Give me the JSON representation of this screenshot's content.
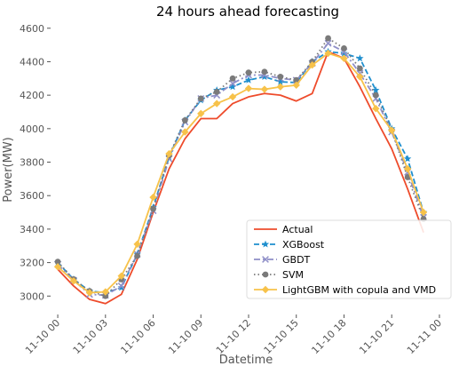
{
  "chart_data": {
    "type": "line",
    "title": "24 hours ahead forecasting",
    "xlabel": "Datetime",
    "ylabel": "Power(MW)",
    "ylim": [
      2890,
      4620
    ],
    "xlim": [
      -0.9,
      48.9
    ],
    "grid": false,
    "legend_position": "bottom-right",
    "x_ticks": [
      {
        "x": 0,
        "label": "11-10 00"
      },
      {
        "x": 6,
        "label": "11-10 03"
      },
      {
        "x": 12,
        "label": "11-10 06"
      },
      {
        "x": 18,
        "label": "11-10 09"
      },
      {
        "x": 24,
        "label": "11-10 12"
      },
      {
        "x": 30,
        "label": "11-10 15"
      },
      {
        "x": 36,
        "label": "11-10 18"
      },
      {
        "x": 42,
        "label": "11-10 21"
      },
      {
        "x": 48,
        "label": "11-11 00"
      }
    ],
    "y_ticks": [
      3000,
      3200,
      3400,
      3600,
      3800,
      4000,
      4200,
      4400,
      4600
    ],
    "x": [
      0,
      2,
      4,
      6,
      8,
      10,
      12,
      14,
      16,
      18,
      20,
      22,
      24,
      26,
      28,
      30,
      32,
      34,
      36,
      38,
      40,
      42,
      44,
      46
    ],
    "series": [
      {
        "name": "Actual",
        "color": "#ee4b2b",
        "marker": "none",
        "dash": "solid",
        "values": [
          3160,
          3060,
          2980,
          2955,
          3010,
          3220,
          3500,
          3760,
          3940,
          4060,
          4060,
          4150,
          4190,
          4210,
          4200,
          4165,
          4210,
          4460,
          4420,
          4250,
          4060,
          3880,
          3640,
          3380
        ]
      },
      {
        "name": "XGBoost",
        "color": "#1f8fce",
        "marker": "star",
        "dash": "dashed",
        "values": [
          3200,
          3100,
          3030,
          3020,
          3050,
          3250,
          3530,
          3830,
          4050,
          4170,
          4230,
          4250,
          4290,
          4310,
          4280,
          4275,
          4400,
          4460,
          4450,
          4420,
          4230,
          4000,
          3820,
          3500
        ]
      },
      {
        "name": "GBDT",
        "color": "#8f8fc8",
        "marker": "x",
        "dash": "dashdot",
        "values": [
          3190,
          3095,
          3010,
          3005,
          3060,
          3250,
          3510,
          3820,
          4040,
          4180,
          4200,
          4270,
          4320,
          4320,
          4300,
          4290,
          4390,
          4510,
          4460,
          4330,
          4180,
          3980,
          3740,
          3470
        ]
      },
      {
        "name": "SVM",
        "color": "#7a7a7a",
        "marker": "circle",
        "dash": "dotted",
        "values": [
          3205,
          3100,
          3030,
          3000,
          3100,
          3240,
          3520,
          3840,
          4050,
          4180,
          4220,
          4300,
          4335,
          4340,
          4310,
          4290,
          4400,
          4540,
          4480,
          4360,
          4200,
          3990,
          3710,
          3460
        ]
      },
      {
        "name": "LightGBM with copula and VMD",
        "color": "#f7c24a",
        "marker": "diamond",
        "dash": "solid",
        "values": [
          3175,
          3090,
          3020,
          3025,
          3120,
          3310,
          3590,
          3850,
          3980,
          4090,
          4150,
          4190,
          4240,
          4235,
          4250,
          4260,
          4380,
          4450,
          4420,
          4310,
          4120,
          3990,
          3760,
          3500
        ]
      }
    ]
  }
}
